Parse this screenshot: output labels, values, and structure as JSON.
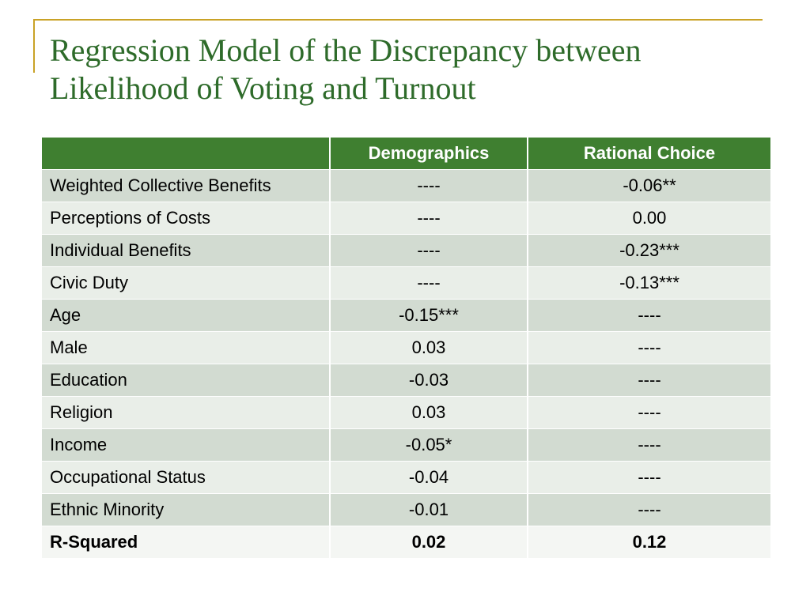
{
  "slide": {
    "title_line1": "Regression Model of the Discrepancy between",
    "title_line2": "Likelihood of Voting and Turnout"
  },
  "table": {
    "headers": [
      "",
      "Demographics",
      "Rational Choice"
    ],
    "rows": [
      [
        "Weighted Collective Benefits",
        "----",
        "-0.06**"
      ],
      [
        "Perceptions of Costs",
        "----",
        "0.00"
      ],
      [
        "Individual Benefits",
        "----",
        "-0.23***"
      ],
      [
        "Civic Duty",
        "----",
        "-0.13***"
      ],
      [
        "Age",
        "-0.15***",
        "----"
      ],
      [
        "Male",
        "0.03",
        "----"
      ],
      [
        "Education",
        "-0.03",
        "----"
      ],
      [
        "Religion",
        "0.03",
        "----"
      ],
      [
        "Income",
        "-0.05*",
        "----"
      ],
      [
        "Occupational Status",
        "-0.04",
        "----"
      ],
      [
        "Ethnic Minority",
        "-0.01",
        "----"
      ],
      [
        "R-Squared",
        "0.02",
        "0.12"
      ]
    ]
  },
  "colors": {
    "title_text": "#2e6b2a",
    "accent_line": "#c9a227",
    "header_bg": "#3f7f30",
    "row_odd_bg": "#d2dbd1",
    "row_even_bg": "#e9eee8"
  }
}
